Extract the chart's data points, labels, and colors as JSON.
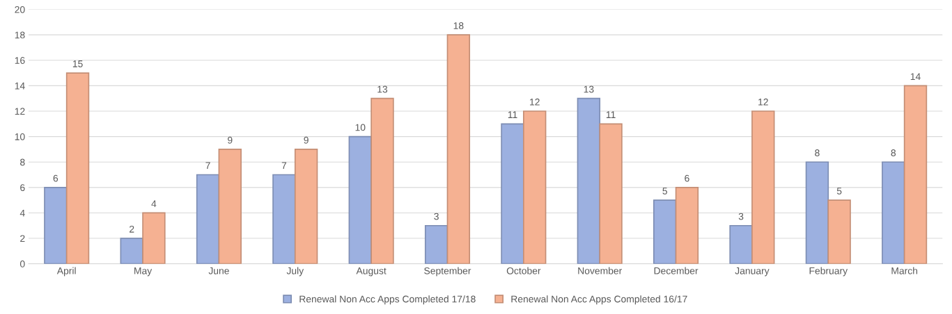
{
  "chart_data": {
    "type": "bar",
    "categories": [
      "April",
      "May",
      "June",
      "July",
      "August",
      "September",
      "October",
      "November",
      "December",
      "January",
      "February",
      "March"
    ],
    "series": [
      {
        "name": "Renewal Non Acc Apps Completed 17/18",
        "color": "#9cb0e0",
        "values": [
          6,
          2,
          7,
          7,
          10,
          3,
          11,
          13,
          5,
          3,
          8,
          8
        ]
      },
      {
        "name": "Renewal Non Acc Apps Completed 16/17",
        "color": "#f5b192",
        "values": [
          15,
          4,
          9,
          9,
          13,
          18,
          12,
          11,
          6,
          12,
          5,
          14
        ]
      }
    ],
    "ylim": [
      0,
      20
    ],
    "yticks": [
      0,
      2,
      4,
      6,
      8,
      10,
      12,
      14,
      16,
      18,
      20
    ],
    "grid": "y",
    "legend": "bottom",
    "data_labels": true
  }
}
